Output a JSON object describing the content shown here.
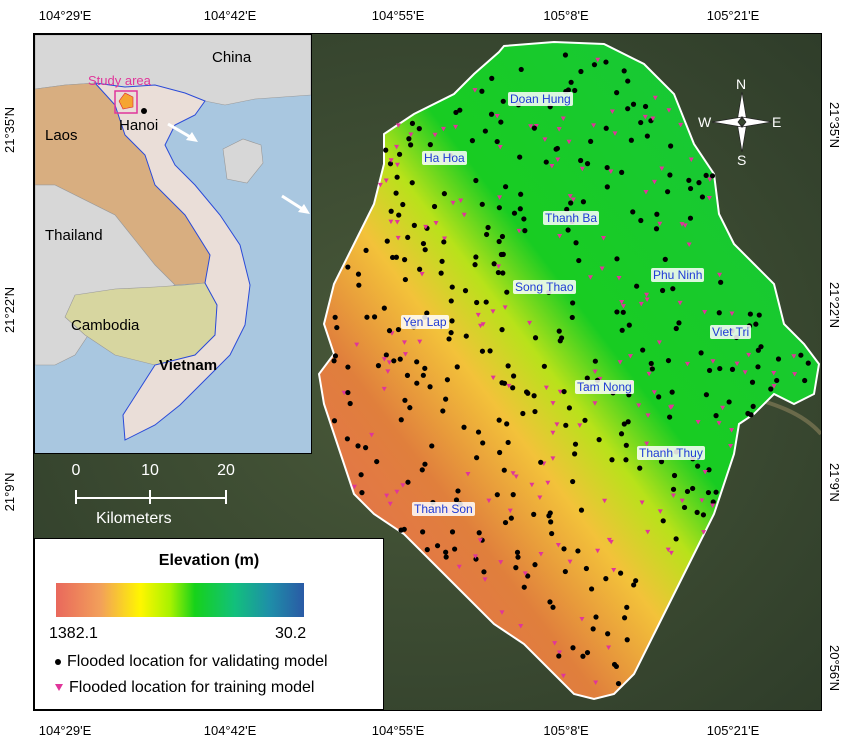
{
  "coords": {
    "top": [
      "104°29'E",
      "104°42'E",
      "104°55'E",
      "105°8'E",
      "105°21'E"
    ],
    "bottom": [
      "104°29'E",
      "104°42'E",
      "104°55'E",
      "105°8'E",
      "105°21'E"
    ],
    "left": [
      "21°35'N",
      "21°22'N",
      "21°9'N"
    ],
    "right": [
      "21°35'N",
      "21°22'N",
      "21°9'N",
      "20°56'N"
    ]
  },
  "inset": {
    "countries": [
      "China",
      "Laos",
      "Thailand",
      "Cambodia",
      "Vietnam"
    ],
    "study_area": "Study area",
    "city": "Hanoi"
  },
  "places": [
    "Doan Hung",
    "Ha Hoa",
    "Thanh Ba",
    "Phu Ninh",
    "Song Thao",
    "Viet Tri",
    "Yen Lap",
    "Tam Nong",
    "Thanh Thuy",
    "Thanh Son"
  ],
  "north_arrow": {
    "n": "N",
    "s": "S",
    "e": "E",
    "w": "W"
  },
  "scale_bar": {
    "ticks": [
      "0",
      "10",
      "20"
    ],
    "unit": "Kilometers"
  },
  "legend": {
    "title": "Elevation (m)",
    "max": "1382.1",
    "min": "30.2",
    "validating": "Flooded location for validating model",
    "training": "Flooded location for training model",
    "validating_color": "#000000",
    "training_color": "#e0359a"
  }
}
